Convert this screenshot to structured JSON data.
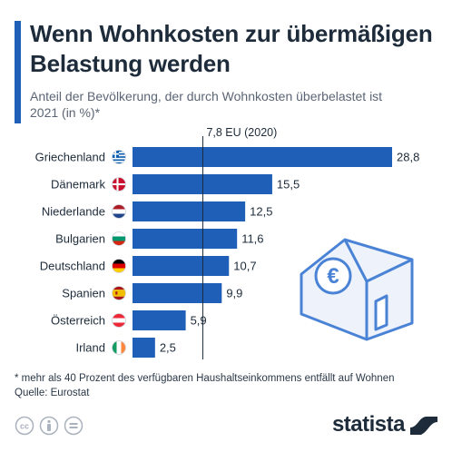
{
  "title": "Wenn Wohnkosten zur übermäßigen Belastung werden",
  "subtitle": "Anteil der Bevölkerung, der durch Wohnkosten überbelastet ist 2021 (in %)*",
  "footnote": "* mehr als 40 Prozent des verfügbaren Haushaltseinkommens entfällt auf Wohnen",
  "source": "Quelle: Eurostat",
  "brand": "statista",
  "icons": [
    "cc-icon",
    "person-icon",
    "equal-icon",
    "house-euro-icon",
    "statista-logo-icon"
  ],
  "colors": {
    "bar": "#1f5fb8",
    "accent": "#1f5fb8",
    "text": "#1d2b3a",
    "illustration": "#4a83d6"
  },
  "chart_data": {
    "type": "bar",
    "orientation": "horizontal",
    "categories": [
      "Griechenland",
      "Dänemark",
      "Niederlande",
      "Bulgarien",
      "Deutschland",
      "Spanien",
      "Österreich",
      "Irland"
    ],
    "values": [
      28.8,
      15.5,
      12.5,
      11.6,
      10.7,
      9.9,
      5.9,
      2.5
    ],
    "value_labels": [
      "28,8",
      "15,5",
      "12,5",
      "11,6",
      "10,7",
      "9,9",
      "5,9",
      "2,5"
    ],
    "flags": [
      "greece",
      "denmark",
      "netherlands",
      "bulgaria",
      "germany",
      "spain",
      "austria",
      "ireland"
    ],
    "reference_line": {
      "value": 7.8,
      "label": "7,8 EU (2020)"
    },
    "xlim": [
      0,
      28.8
    ],
    "grid": false,
    "legend": "none"
  }
}
